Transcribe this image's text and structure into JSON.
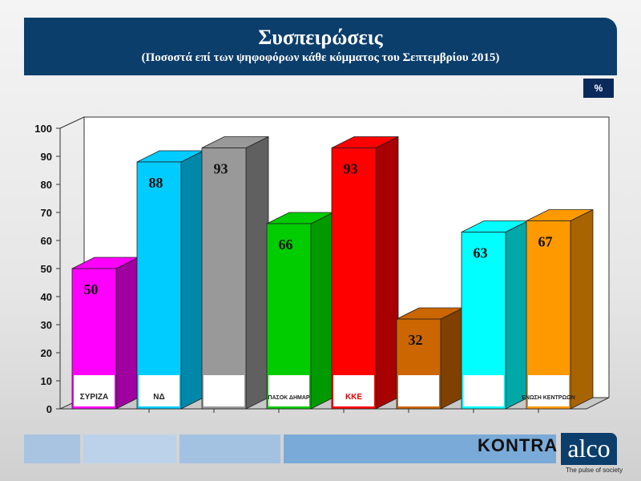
{
  "header": {
    "title": "Συσπειρώσεις",
    "subtitle": "(Ποσοστά επί των ψηφοφόρων κάθε κόμματος του Σεπτεμβρίου 2015)"
  },
  "unit_label": "%",
  "chart_data": {
    "type": "bar",
    "title": "Συσπειρώσεις",
    "subtitle": "(Ποσοστά επί των ψηφοφόρων κάθε κόμματος του Σεπτεμβρίου 2015)",
    "categories": [
      "ΣΥΡΙΖΑ",
      "ΝΔ",
      "",
      "ΠΑΣΟΚ ΔΗΜΑΡ",
      "ΚΚΕ",
      "",
      "",
      "ΕΝΩΣΗ ΚΕΝΤΡΩΩΝ"
    ],
    "values": [
      50,
      88,
      93,
      66,
      93,
      32,
      63,
      67
    ],
    "colors": [
      [
        "#ff00ff",
        "#a000a0"
      ],
      [
        "#00ccff",
        "#0088aa"
      ],
      [
        "#999999",
        "#606060"
      ],
      [
        "#00cc00",
        "#009900"
      ],
      [
        "#ff0000",
        "#a80000"
      ],
      [
        "#cc6600",
        "#804000"
      ],
      [
        "#00ffff",
        "#00a8a8"
      ],
      [
        "#ff9900",
        "#a86400"
      ]
    ],
    "ylim": [
      0,
      100
    ],
    "yticks": [
      0,
      10,
      20,
      30,
      40,
      50,
      60,
      70,
      80,
      90,
      100
    ],
    "style": "3d-bar with party logos at bar base",
    "grid": false,
    "legend": "none"
  },
  "footer": {
    "brand1": "KONTRA",
    "brand2": "alco",
    "tagline": "The pulse of society"
  }
}
